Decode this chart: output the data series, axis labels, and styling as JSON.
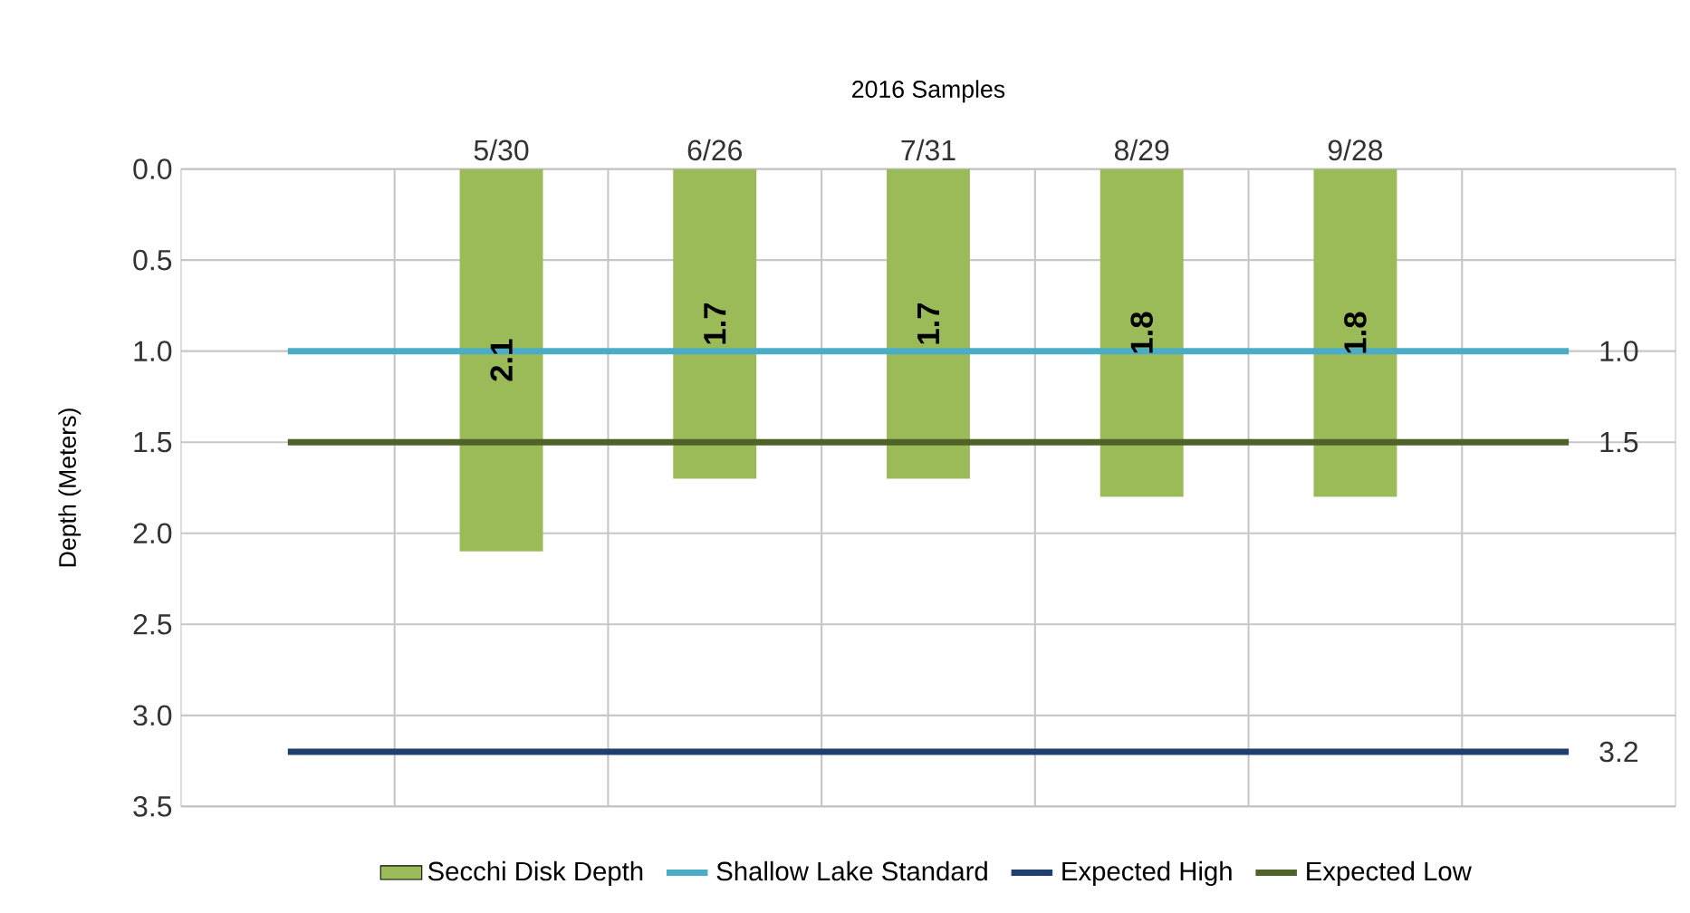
{
  "chart_data": {
    "type": "bar",
    "xlabel": "2016 Samples",
    "ylabel": "Depth (Meters)",
    "categories": [
      null,
      "5/30",
      "6/26",
      "7/31",
      "8/29",
      "9/28",
      null
    ],
    "ylim": [
      3.5,
      0
    ],
    "yticks": [
      {
        "value": 0,
        "label": "0.0"
      },
      {
        "value": 0.5,
        "label": "0.5"
      },
      {
        "value": 1,
        "label": "1.0"
      },
      {
        "value": 1.5,
        "label": "1.5"
      },
      {
        "value": 2,
        "label": "2.0"
      },
      {
        "value": 2.5,
        "label": "2.5"
      },
      {
        "value": 3,
        "label": "3.0"
      },
      {
        "value": 3.5,
        "label": "3.5"
      }
    ],
    "grid": true,
    "legend": "bottom",
    "series": [
      {
        "name": "Secchi Disk Depth",
        "color": "#9bbb59",
        "values": [
          null,
          2.1,
          1.7,
          1.7,
          1.8,
          1.8,
          null
        ],
        "value_labels": [
          null,
          "2.1",
          "1.7",
          "1.7",
          "1.8",
          "1.8",
          null
        ]
      },
      {
        "name": "Shallow Lake Standard",
        "type": "line",
        "color": "#4bacc6",
        "values": [
          1.0,
          1.0,
          1.0,
          1.0,
          1.0,
          1.0,
          1.0
        ],
        "value_labels": [
          null,
          null,
          null,
          null,
          null,
          null,
          "1.0"
        ]
      },
      {
        "name": "Expected High",
        "type": "line",
        "color": "#1f3f6e",
        "values": [
          3.2,
          3.2,
          3.2,
          3.2,
          3.2,
          3.2,
          3.2
        ],
        "value_labels": [
          null,
          null,
          null,
          null,
          null,
          null,
          "3.2"
        ]
      },
      {
        "name": "Expected Low",
        "type": "line",
        "color": "#4f6228",
        "values": [
          1.5,
          1.5,
          1.5,
          1.5,
          1.5,
          1.5,
          1.5
        ],
        "value_labels": [
          null,
          null,
          null,
          null,
          null,
          null,
          "1.5"
        ]
      }
    ]
  }
}
